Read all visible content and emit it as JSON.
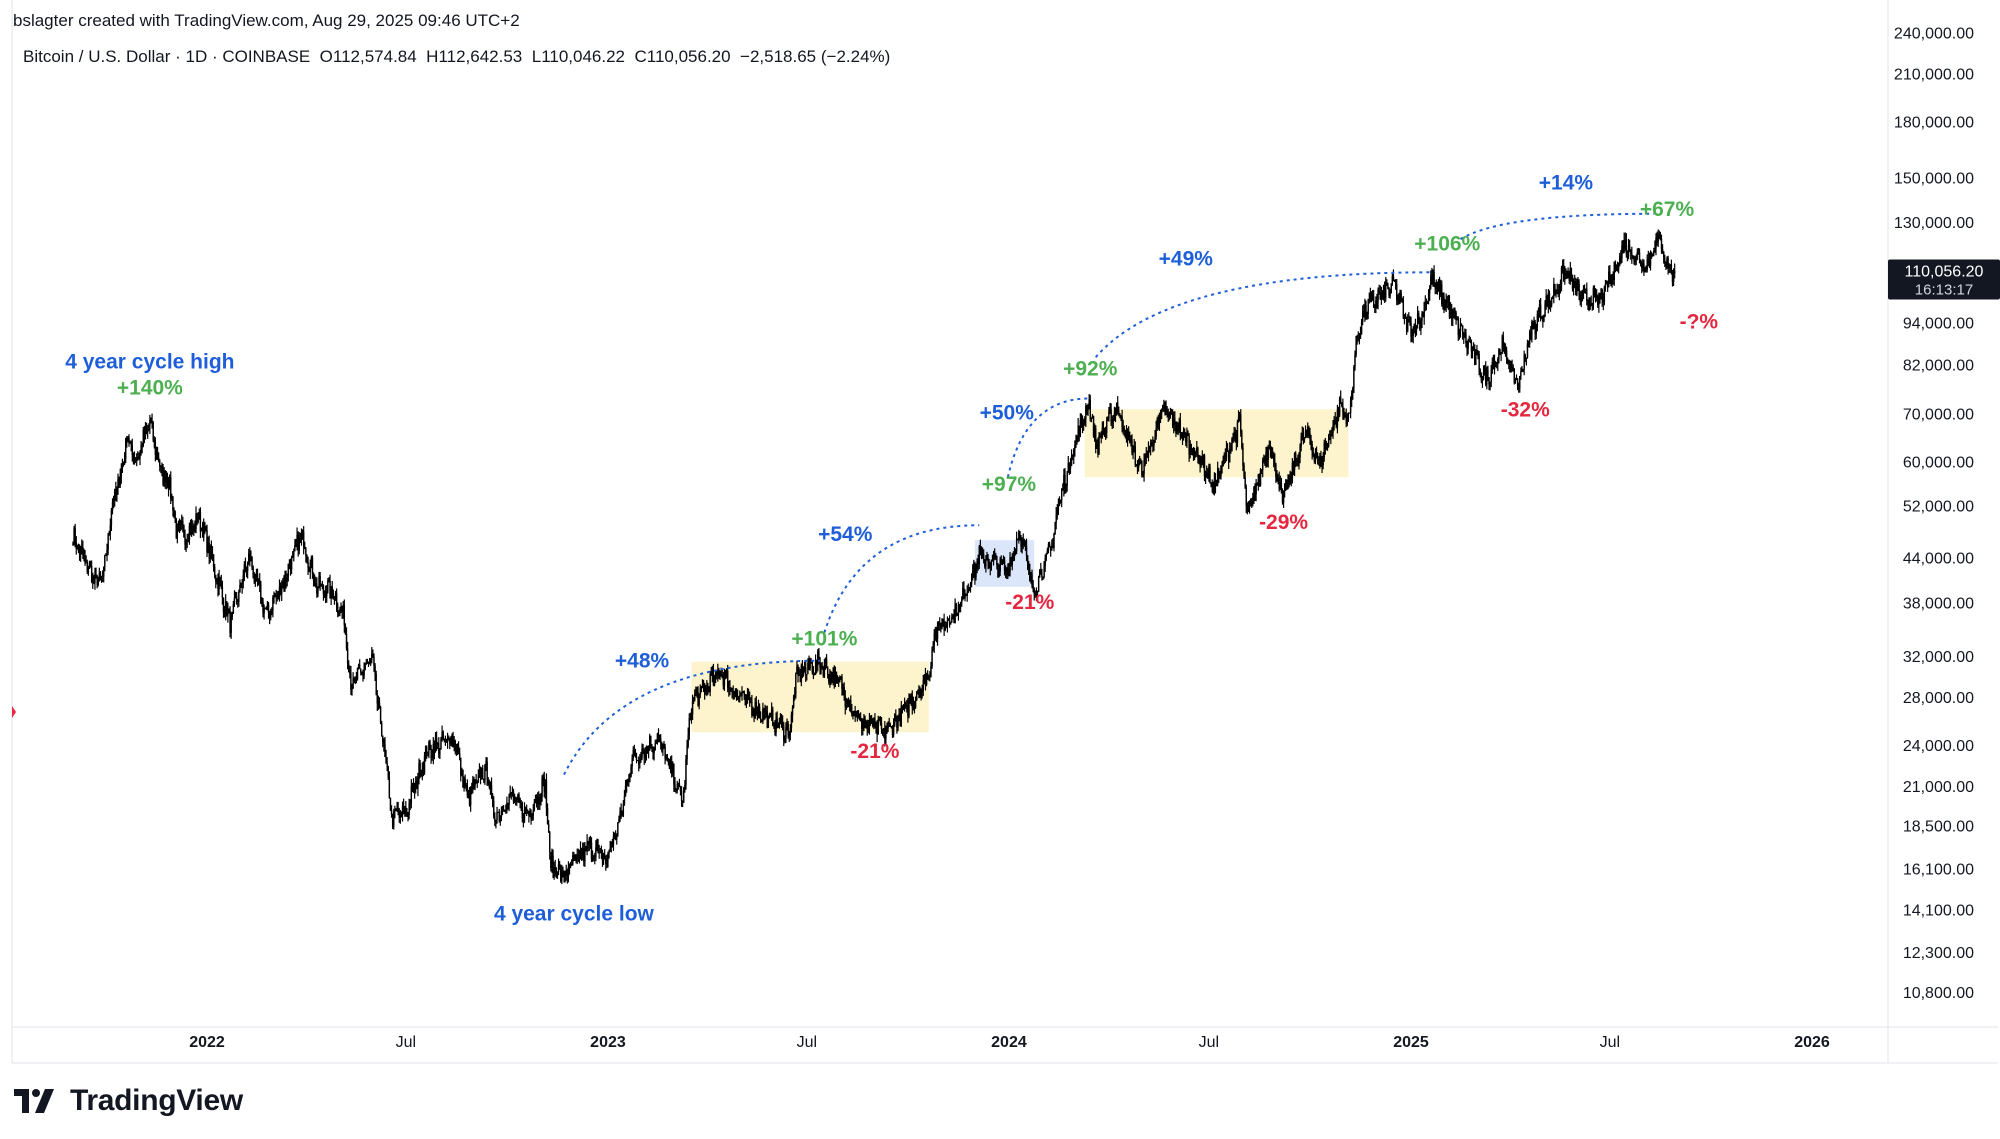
{
  "header": {
    "created_by": "bslagter created with TradingView.com, Aug 29, 2025 09:46 UTC+2",
    "symbol_line": "Bitcoin / U.S. Dollar · 1D · COINBASE",
    "ohlc": {
      "open_label": "O",
      "open": "112,574.84",
      "high_label": "H",
      "high": "112,642.53",
      "low_label": "L",
      "low": "110,046.22",
      "close_label": "C",
      "close": "110,056.20",
      "change": "−2,518.65 (−2.24%)"
    }
  },
  "price_badge": {
    "price": "110,056.20",
    "countdown": "16:13:17"
  },
  "footer": {
    "brand": "TradingView"
  },
  "colors": {
    "background": "#ffffff",
    "candle": "#000000",
    "blue_annotation": "#1e5fd9",
    "green_annotation": "#4caf50",
    "red_annotation": "#e5263f",
    "yellow_zone": "#fdf3cc",
    "blue_zone": "#dbe6fb",
    "axis_text": "#131722",
    "grid_border": "#e0e3eb"
  },
  "chart_data": {
    "type": "candlestick",
    "title": "Bitcoin / U.S. Dollar · 1D · COINBASE",
    "y_scale": "log",
    "y_ticks": [
      "240,000.00",
      "210,000.00",
      "180,000.00",
      "150,000.00",
      "130,000.00",
      "94,000.00",
      "82,000.00",
      "70,000.00",
      "60,000.00",
      "52,000.00",
      "44,000.00",
      "38,000.00",
      "32,000.00",
      "28,000.00",
      "24,000.00",
      "21,000.00",
      "18,500.00",
      "16,100.00",
      "14,100.00",
      "12,300.00",
      "10,800.00"
    ],
    "y_tick_values": [
      240000,
      210000,
      180000,
      150000,
      130000,
      94000,
      82000,
      70000,
      60000,
      52000,
      44000,
      38000,
      32000,
      28000,
      24000,
      21000,
      18500,
      16100,
      14100,
      12300,
      10800
    ],
    "x_ticks": [
      {
        "label": "2022",
        "date": "2022-01-01",
        "bold": true
      },
      {
        "label": "Jul",
        "date": "2022-07-01",
        "bold": false
      },
      {
        "label": "2023",
        "date": "2023-01-01",
        "bold": true
      },
      {
        "label": "Jul",
        "date": "2023-07-01",
        "bold": false
      },
      {
        "label": "2024",
        "date": "2024-01-01",
        "bold": true
      },
      {
        "label": "Jul",
        "date": "2024-07-01",
        "bold": false
      },
      {
        "label": "2025",
        "date": "2025-01-01",
        "bold": true
      },
      {
        "label": "Jul",
        "date": "2025-07-01",
        "bold": false
      },
      {
        "label": "2026",
        "date": "2026-01-01",
        "bold": true
      }
    ],
    "series": [
      {
        "keypoints": [
          [
            "2021-09-01",
            47000
          ],
          [
            "2021-09-10",
            44000
          ],
          [
            "2021-09-22",
            40500
          ],
          [
            "2021-09-29",
            41500
          ],
          [
            "2021-10-06",
            51500
          ],
          [
            "2021-10-15",
            58000
          ],
          [
            "2021-10-20",
            65000
          ],
          [
            "2021-10-28",
            60000
          ],
          [
            "2021-11-10",
            68000
          ],
          [
            "2021-11-20",
            58000
          ],
          [
            "2021-11-28",
            56000
          ],
          [
            "2021-12-04",
            48000
          ],
          [
            "2021-12-15",
            47500
          ],
          [
            "2021-12-25",
            50000
          ],
          [
            "2022-01-05",
            44000
          ],
          [
            "2022-01-22",
            35500
          ],
          [
            "2022-02-08",
            44000
          ],
          [
            "2022-02-24",
            36500
          ],
          [
            "2022-03-10",
            40000
          ],
          [
            "2022-03-28",
            47300
          ],
          [
            "2022-04-11",
            40000
          ],
          [
            "2022-04-25",
            39500
          ],
          [
            "2022-05-06",
            36000
          ],
          [
            "2022-05-12",
            29000
          ],
          [
            "2022-05-31",
            31700
          ],
          [
            "2022-06-13",
            22500
          ],
          [
            "2022-06-18",
            19000
          ],
          [
            "2022-07-01",
            19300
          ],
          [
            "2022-07-20",
            23500
          ],
          [
            "2022-07-30",
            24000
          ],
          [
            "2022-08-14",
            24500
          ],
          [
            "2022-08-26",
            20200
          ],
          [
            "2022-09-12",
            22300
          ],
          [
            "2022-09-20",
            19000
          ],
          [
            "2022-10-05",
            20300
          ],
          [
            "2022-10-20",
            19100
          ],
          [
            "2022-11-05",
            21300
          ],
          [
            "2022-11-09",
            16500
          ],
          [
            "2022-11-21",
            15700
          ],
          [
            "2022-12-15",
            17300
          ],
          [
            "2022-12-30",
            16500
          ],
          [
            "2023-01-12",
            18800
          ],
          [
            "2023-01-22",
            22800
          ],
          [
            "2023-02-16",
            24500
          ],
          [
            "2023-03-10",
            20000
          ],
          [
            "2023-03-18",
            27500
          ],
          [
            "2023-04-14",
            30400
          ],
          [
            "2023-04-26",
            28400
          ],
          [
            "2023-05-25",
            26300
          ],
          [
            "2023-06-15",
            25000
          ],
          [
            "2023-06-22",
            30000
          ],
          [
            "2023-07-13",
            31400
          ],
          [
            "2023-07-31",
            29200
          ],
          [
            "2023-08-17",
            26000
          ],
          [
            "2023-09-11",
            25000
          ],
          [
            "2023-09-30",
            27000
          ],
          [
            "2023-10-20",
            30000
          ],
          [
            "2023-10-25",
            34500
          ],
          [
            "2023-11-15",
            37000
          ],
          [
            "2023-12-05",
            44000
          ],
          [
            "2023-12-31",
            42300
          ],
          [
            "2024-01-11",
            48000
          ],
          [
            "2024-01-23",
            39500
          ],
          [
            "2024-02-08",
            45000
          ],
          [
            "2024-02-15",
            52000
          ],
          [
            "2024-02-28",
            62000
          ],
          [
            "2024-03-14",
            73000
          ],
          [
            "2024-03-20",
            63000
          ],
          [
            "2024-04-08",
            71500
          ],
          [
            "2024-04-30",
            58000
          ],
          [
            "2024-05-21",
            71000
          ],
          [
            "2024-06-25",
            60000
          ],
          [
            "2024-07-05",
            55000
          ],
          [
            "2024-07-29",
            68000
          ],
          [
            "2024-08-05",
            50000
          ],
          [
            "2024-08-25",
            64000
          ],
          [
            "2024-09-06",
            53000
          ],
          [
            "2024-09-27",
            66000
          ],
          [
            "2024-10-10",
            59500
          ],
          [
            "2024-10-29",
            72000
          ],
          [
            "2024-11-05",
            68000
          ],
          [
            "2024-11-13",
            90000
          ],
          [
            "2024-11-22",
            99000
          ],
          [
            "2024-12-17",
            106000
          ],
          [
            "2024-12-30",
            92000
          ],
          [
            "2025-01-10",
            95000
          ],
          [
            "2025-01-20",
            108000
          ],
          [
            "2025-02-05",
            98000
          ],
          [
            "2025-02-25",
            86000
          ],
          [
            "2025-03-10",
            78000
          ],
          [
            "2025-03-25",
            87000
          ],
          [
            "2025-04-08",
            76500
          ],
          [
            "2025-04-22",
            93000
          ],
          [
            "2025-05-10",
            103000
          ],
          [
            "2025-05-22",
            111000
          ],
          [
            "2025-06-05",
            101500
          ],
          [
            "2025-06-22",
            101000
          ],
          [
            "2025-07-03",
            109000
          ],
          [
            "2025-07-14",
            121000
          ],
          [
            "2025-08-03",
            113000
          ],
          [
            "2025-08-14",
            123500
          ],
          [
            "2025-08-25",
            111000
          ],
          [
            "2025-08-29",
            110056
          ]
        ]
      }
    ],
    "zones": [
      {
        "color": "yellow",
        "from": "2023-03-18",
        "to": "2023-10-20",
        "low": 25000,
        "high": 31400
      },
      {
        "color": "blue",
        "from": "2023-12-01",
        "to": "2024-01-24",
        "low": 40000,
        "high": 46500
      },
      {
        "color": "yellow",
        "from": "2024-03-10",
        "to": "2024-11-05",
        "low": 57000,
        "high": 71000
      }
    ],
    "arcs": [
      {
        "from": [
          "2022-11-22",
          21800
        ],
        "to": [
          "2023-07-13",
          31500
        ]
      },
      {
        "from": [
          "2023-07-17",
          34500
        ],
        "to": [
          "2023-12-05",
          48800
        ]
      },
      {
        "from": [
          "2023-12-31",
          57000
        ],
        "to": [
          "2024-03-14",
          73500
        ]
      },
      {
        "from": [
          "2024-03-20",
          84000
        ],
        "to": [
          "2025-01-20",
          110500
        ]
      },
      {
        "from": [
          "2025-02-15",
          123000
        ],
        "to": [
          "2025-08-10",
          133500
        ]
      }
    ],
    "annotations": [
      {
        "text": "4 year cycle high",
        "color": "blue",
        "date": "2021-11-10",
        "price": 81000
      },
      {
        "text": "+140%",
        "color": "green",
        "date": "2021-11-10",
        "price": 74500
      },
      {
        "text": "4 year cycle low",
        "color": "blue",
        "date": "2022-12-01",
        "price": 13600
      },
      {
        "text": "+48%",
        "color": "blue",
        "date": "2023-02-01",
        "price": 30800
      },
      {
        "text": "+101%",
        "color": "green",
        "date": "2023-07-17",
        "price": 33100
      },
      {
        "text": "-21%",
        "color": "red",
        "date": "2023-09-01",
        "price": 23000
      },
      {
        "text": "+54%",
        "color": "blue",
        "date": "2023-08-05",
        "price": 46400
      },
      {
        "text": "+97%",
        "color": "green",
        "date": "2024-01-01",
        "price": 54500
      },
      {
        "text": "-21%",
        "color": "red",
        "date": "2024-01-20",
        "price": 37200
      },
      {
        "text": "+50%",
        "color": "blue",
        "date": "2023-12-30",
        "price": 68700
      },
      {
        "text": "+92%",
        "color": "green",
        "date": "2024-03-15",
        "price": 79200
      },
      {
        "text": "-29%",
        "color": "red",
        "date": "2024-09-07",
        "price": 48200
      },
      {
        "text": "+49%",
        "color": "blue",
        "date": "2024-06-10",
        "price": 113000
      },
      {
        "text": "+106%",
        "color": "green",
        "date": "2025-02-03",
        "price": 118500
      },
      {
        "text": "-32%",
        "color": "red",
        "date": "2025-04-15",
        "price": 69300
      },
      {
        "text": "+14%",
        "color": "blue",
        "date": "2025-05-22",
        "price": 144500
      },
      {
        "text": "+67%",
        "color": "green",
        "date": "2025-08-22",
        "price": 132500
      },
      {
        "text": "-?%",
        "color": "red",
        "date": "2025-09-20",
        "price": 92200
      }
    ]
  }
}
